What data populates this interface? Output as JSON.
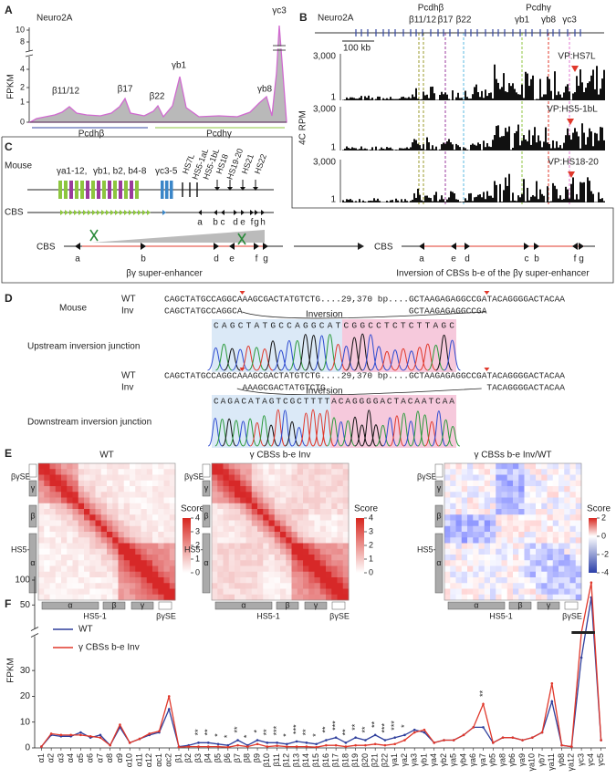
{
  "panel_a": {
    "label": "A",
    "cell_line": "Neuro2A",
    "y_label": "FPKM",
    "yticks": [
      0,
      1,
      2,
      4,
      8,
      10
    ],
    "peak_labels": [
      "β11/12",
      "β17",
      "β22",
      "γb1",
      "γb8",
      "γc3"
    ],
    "clusters": [
      "Pcdhβ",
      "Pcdhγ"
    ]
  },
  "panel_b": {
    "label": "B",
    "cell_line": "Neuro2A",
    "clusters": [
      "Pcdhβ",
      "Pcdhγ"
    ],
    "genes": [
      "β11/12",
      "β17",
      "β22",
      "γb1",
      "γb8",
      "γc3"
    ],
    "scale_bar": "100 kb",
    "y_label": "4C RPM",
    "tracks": [
      {
        "viewpoint": "VP:HS7L",
        "y_max": "3,000",
        "y_min": "1"
      },
      {
        "viewpoint": "VP:HS5-1bL",
        "y_max": "3,000",
        "y_min": "1"
      },
      {
        "viewpoint": "VP:HS18-20",
        "y_max": "3,000",
        "y_min": "1"
      }
    ]
  },
  "panel_c": {
    "label": "C",
    "species": "Mouse",
    "gene_groups": [
      "γa1-12,",
      "γb1, b2, b4-8",
      "γc3-5"
    ],
    "hs_sites": [
      "HS7L",
      "HS5-1aL",
      "HS5-1bL",
      "HS18",
      "HS19-20",
      "HS21",
      "HS22"
    ],
    "cbs_label": "CBS",
    "cbs_sites": [
      "a",
      "b",
      "c",
      "d",
      "e",
      "f",
      "g",
      "h"
    ],
    "left": {
      "label": "CBS",
      "sites": [
        "a",
        "b",
        "d",
        "e",
        "f",
        "g"
      ],
      "caption": "βγ super-enhancer"
    },
    "right": {
      "label": "CBS",
      "sites": [
        "a",
        "e",
        "d",
        "c",
        "b",
        "f",
        "g"
      ],
      "caption": "Inversion of CBSs b-e of the βγ super-enhancer"
    }
  },
  "panel_d": {
    "label": "D",
    "species": "Mouse",
    "upstream": {
      "wt_label": "WT",
      "inv_label": "Inv",
      "wt_seq": "CAGCTATGCCAGGCAAAGCGACTATGTCTG....29,370 bp....GCTAAGAGAGGCCGATACAGGGGACTACAA",
      "inv_seq_left": "CAGCTATGCCAGGCA",
      "inv_seq_right": "GCTAAGAGAGGCCGA",
      "inversion": "Inversion",
      "trace": "CAGCTATGCCAGGCATCGGCCTCTCTTAGC",
      "caption": "Upstream inversion junction"
    },
    "downstream": {
      "wt_label": "WT",
      "inv_label": "Inv",
      "wt_seq": "CAGCTATGCCAGGCAAAGCGACTATGTCTG....29,370 bp....GCTAAGAGAGGCCGATACAGGGGACTACAA",
      "inv_seq_left": "AAAGCGACTATGTCTG",
      "inv_seq_right": "TACAGGGGACTACAA",
      "inversion": "Inversion",
      "trace": "CAGACATAGTCGCTTTTACAGGGGACTACAATCAA",
      "caption": "Downstream inversion junction"
    }
  },
  "panel_e": {
    "label": "E",
    "maps": [
      {
        "title": "WT",
        "score_label": "Score",
        "score_ticks": [
          4,
          3,
          2,
          1,
          0
        ]
      },
      {
        "title": "γ CBSs b-e Inv",
        "score_label": "Score",
        "score_ticks": [
          4,
          3,
          2,
          1,
          0
        ]
      },
      {
        "title": "γ CBSs b-e Inv/WT",
        "score_label": "Score",
        "score_ticks": [
          2,
          0,
          -2,
          -4
        ]
      }
    ],
    "side_labels": {
      "se": "βγSE",
      "hs": "HS5-1",
      "clusters": [
        "γ",
        "β",
        "α"
      ]
    },
    "bottom_labels": {
      "clusters": [
        "α",
        "β",
        "γ"
      ],
      "hs": "HS5-1",
      "se": "βγSE"
    }
  },
  "chart_data": {
    "type": "line",
    "label": "F",
    "y_label": "FPKM",
    "categories": [
      "α1",
      "α2",
      "α3",
      "α4",
      "α5",
      "α6",
      "α7",
      "α8",
      "α9",
      "α10",
      "α11",
      "α12",
      "αc1",
      "αc2",
      "β1",
      "β2",
      "β3",
      "β4",
      "β5",
      "β6",
      "β7",
      "β8",
      "β9",
      "β10",
      "β11",
      "β12",
      "β13",
      "β14",
      "β15",
      "β16",
      "β17",
      "β18",
      "β19",
      "β20",
      "β21",
      "β22",
      "γa1",
      "γa2",
      "γa3",
      "γb1",
      "γa4",
      "γb2",
      "γa5",
      "γb4",
      "γa6",
      "γa7",
      "γb5",
      "γa8",
      "γb6",
      "γa9",
      "γa10",
      "γb7",
      "γa11",
      "γb8",
      "γa12",
      "γc3",
      "γc4",
      "γc5"
    ],
    "series": [
      {
        "name": "WT",
        "color": "#2f3f9c",
        "values": [
          0.5,
          5,
          4.5,
          4.5,
          6,
          4,
          5,
          1,
          8,
          2,
          3.5,
          5,
          6,
          15,
          0.5,
          1,
          2,
          2,
          1.5,
          1,
          3,
          1,
          3,
          2,
          2,
          1.5,
          2.5,
          2,
          1.5,
          3,
          4,
          2,
          4,
          3,
          5,
          3,
          4,
          5,
          7,
          6,
          2,
          3,
          3,
          5,
          8,
          8,
          2,
          4,
          4,
          3,
          4,
          6,
          18,
          1,
          0.5,
          35,
          65,
          3
        ]
      },
      {
        "name": "γ CBSs b-e Inv",
        "color": "#e0382b",
        "values": [
          0.5,
          5.5,
          5,
          5,
          5,
          4.5,
          4,
          1,
          9,
          2,
          3.5,
          5.5,
          6.5,
          20,
          0.3,
          0.5,
          0.5,
          0.5,
          0.5,
          0.3,
          1,
          0.5,
          1.5,
          0.5,
          0.8,
          0.5,
          0.5,
          0.5,
          0.3,
          1,
          1,
          0.5,
          1,
          1,
          1.5,
          1,
          1.5,
          3,
          6,
          7,
          2,
          3,
          3,
          5,
          8,
          17,
          2,
          4,
          4,
          3,
          4,
          6,
          25,
          1,
          0.5,
          40,
          95,
          3
        ]
      }
    ],
    "significance": [
      null,
      null,
      null,
      null,
      null,
      null,
      null,
      null,
      null,
      null,
      null,
      null,
      null,
      null,
      null,
      null,
      "**",
      "**",
      "*",
      "*",
      "**",
      "*",
      "*",
      "**",
      "***",
      "*",
      "***",
      "**",
      "*",
      "**",
      "***",
      "**",
      "**",
      "**",
      "**",
      "***",
      "***",
      "*",
      null,
      null,
      null,
      null,
      null,
      null,
      null,
      "**",
      null,
      null,
      null,
      null,
      null,
      null,
      null,
      null,
      null,
      null,
      null,
      null
    ],
    "ylim": [
      0,
      100
    ],
    "yticks": [
      0,
      10,
      20,
      30,
      50,
      100
    ],
    "axis_break": [
      35,
      45
    ],
    "legend": "upper-left"
  }
}
